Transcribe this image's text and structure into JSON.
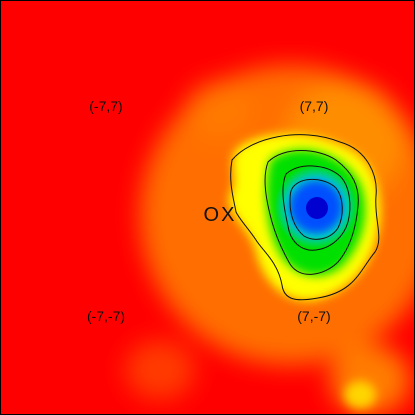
{
  "chart_data": {
    "type": "heatmap",
    "title": "",
    "xlabel": "",
    "ylabel": "",
    "xlim": [
      -14,
      14
    ],
    "ylim": [
      -14,
      14
    ],
    "grid": false,
    "colormap": [
      "#ff0000",
      "#ff7a00",
      "#ffff00",
      "#00e000",
      "#00c8c8",
      "#0050ff",
      "#0000d0"
    ],
    "background_color": "#ff0000",
    "frame_color": "#000000",
    "peak": {
      "x": 6.7,
      "y": 0.3,
      "value": 1.0
    },
    "secondary_peaks": [
      {
        "x": 7.5,
        "y": 8.5,
        "value": 0.35
      },
      {
        "x": 3.0,
        "y": 2.0,
        "value": 0.3
      },
      {
        "x": 7.0,
        "y": -13.5,
        "value": 0.25
      },
      {
        "x": -1.5,
        "y": -11.0,
        "value": 0.2
      }
    ],
    "contour_levels": [
      0.35,
      0.5,
      0.65,
      0.8
    ],
    "annotations": [
      {
        "text": "(-7,7)",
        "x": -7,
        "y": 7
      },
      {
        "text": "(7,7)",
        "x": 7,
        "y": 7
      },
      {
        "text": "(-7,-7)",
        "x": -7,
        "y": -7
      },
      {
        "text": "(7,-7)",
        "x": 7,
        "y": -7
      }
    ],
    "marker_label": "OX"
  }
}
